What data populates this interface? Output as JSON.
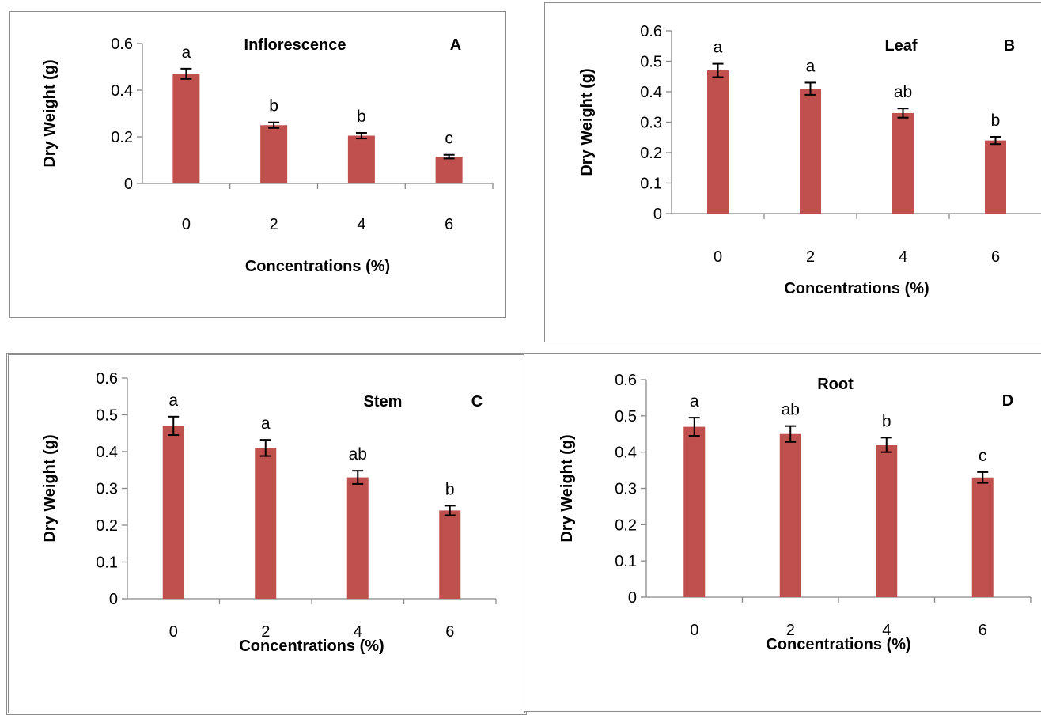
{
  "chart_data": [
    {
      "type": "bar",
      "title": "Inflorescence",
      "panel": "A",
      "categories": [
        "0",
        "2",
        "4",
        "6"
      ],
      "values": [
        0.47,
        0.25,
        0.205,
        0.115
      ],
      "errors": [
        0.022,
        0.012,
        0.012,
        0.008
      ],
      "sig_labels": [
        "a",
        "b",
        "b",
        "c"
      ],
      "xlabel": "Concentrations (%)",
      "ylabel": "Dry Weight (g)",
      "ylim": [
        0,
        0.6
      ],
      "yticks": [
        "0",
        "0.2",
        "0.4",
        "0.6"
      ],
      "bar_color": "#c0504d"
    },
    {
      "type": "bar",
      "title": "Leaf",
      "panel": "B",
      "categories": [
        "0",
        "2",
        "4",
        "6"
      ],
      "values": [
        0.47,
        0.41,
        0.33,
        0.24
      ],
      "errors": [
        0.022,
        0.02,
        0.015,
        0.012
      ],
      "sig_labels": [
        "a",
        "a",
        "ab",
        "b"
      ],
      "xlabel": "Concentrations (%)",
      "ylabel": "Dry Weight (g)",
      "ylim": [
        0,
        0.6
      ],
      "yticks": [
        "0",
        "0.1",
        "0.2",
        "0.3",
        "0.4",
        "0.5",
        "0.6"
      ],
      "bar_color": "#c0504d"
    },
    {
      "type": "bar",
      "title": "Stem",
      "panel": "C",
      "categories": [
        "0",
        "2",
        "4",
        "6"
      ],
      "values": [
        0.47,
        0.41,
        0.33,
        0.24
      ],
      "errors": [
        0.025,
        0.022,
        0.018,
        0.013
      ],
      "sig_labels": [
        "a",
        "a",
        "ab",
        "b"
      ],
      "xlabel": "Concentrations (%)",
      "ylabel": "Dry Weight (g)",
      "ylim": [
        0,
        0.6
      ],
      "yticks": [
        "0",
        "0.1",
        "0.2",
        "0.3",
        "0.4",
        "0.5",
        "0.6"
      ],
      "bar_color": "#c0504d"
    },
    {
      "type": "bar",
      "title": "Root",
      "panel": "D",
      "categories": [
        "0",
        "2",
        "4",
        "6"
      ],
      "values": [
        0.47,
        0.45,
        0.42,
        0.33
      ],
      "errors": [
        0.025,
        0.022,
        0.02,
        0.015
      ],
      "sig_labels": [
        "a",
        "ab",
        "b",
        "c"
      ],
      "xlabel": "Concentrations (%)",
      "ylabel": "Dry Weight (g)",
      "ylim": [
        0,
        0.6
      ],
      "yticks": [
        "0",
        "0.1",
        "0.2",
        "0.3",
        "0.4",
        "0.5",
        "0.6"
      ],
      "bar_color": "#c0504d"
    }
  ]
}
